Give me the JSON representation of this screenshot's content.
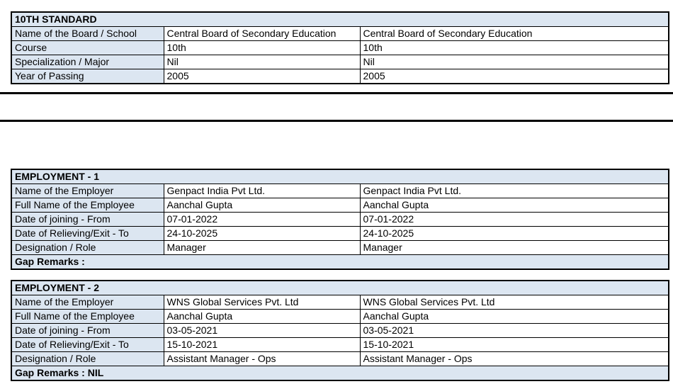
{
  "colors": {
    "highlight_bg": "#dce6f1",
    "border": "#000000",
    "text": "#000000",
    "page_bg": "#ffffff"
  },
  "education_table": {
    "title": "10TH STANDARD",
    "rows": [
      {
        "label": "Name of the Board / School",
        "value1": "Central Board of Secondary Education",
        "value2": "Central Board of Secondary Education"
      },
      {
        "label": "Course",
        "value1": "10th",
        "value2": "10th"
      },
      {
        "label": "Specialization / Major",
        "value1": "Nil",
        "value2": "Nil"
      },
      {
        "label": "Year of Passing",
        "value1": "2005",
        "value2": "2005"
      }
    ]
  },
  "employment1_table": {
    "title": "EMPLOYMENT - 1",
    "rows": [
      {
        "label": "Name of the Employer",
        "value1": "Genpact India Pvt Ltd.",
        "value2": "Genpact India Pvt Ltd."
      },
      {
        "label": "Full Name of the Employee",
        "value1": "Aanchal Gupta",
        "value2": "Aanchal Gupta"
      },
      {
        "label": "Date of joining - From",
        "value1": "07-01-2022",
        "value2": "07-01-2022"
      },
      {
        "label": "Date of Relieving/Exit - To",
        "value1": "24-10-2025",
        "value2": "24-10-2025"
      },
      {
        "label": "Designation / Role",
        "value1": "Manager",
        "value2": "Manager"
      }
    ],
    "gap_remarks": "Gap Remarks :"
  },
  "employment2_table": {
    "title": "EMPLOYMENT - 2",
    "rows": [
      {
        "label": "Name of the Employer",
        "value1": "WNS Global Services Pvt. Ltd",
        "value2": "WNS Global Services Pvt. Ltd"
      },
      {
        "label": "Full Name of the Employee",
        "value1": "Aanchal Gupta",
        "value2": "Aanchal Gupta"
      },
      {
        "label": "Date of joining - From",
        "value1": "03-05-2021",
        "value2": "03-05-2021"
      },
      {
        "label": "Date of Relieving/Exit - To",
        "value1": "15-10-2021",
        "value2": "15-10-2021"
      },
      {
        "label": "Designation / Role",
        "value1": "Assistant Manager - Ops",
        "value2": "Assistant Manager - Ops"
      }
    ],
    "gap_remarks": "Gap Remarks : NIL"
  }
}
